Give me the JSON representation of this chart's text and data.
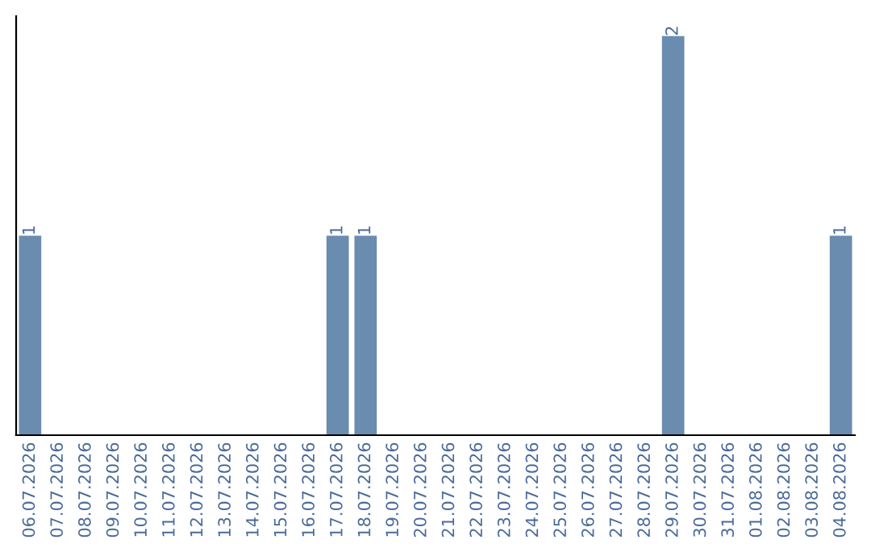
{
  "chart_data": {
    "type": "bar",
    "categories": [
      "06.07.2026",
      "07.07.2026",
      "08.07.2026",
      "09.07.2026",
      "10.07.2026",
      "11.07.2026",
      "12.07.2026",
      "13.07.2026",
      "14.07.2026",
      "15.07.2026",
      "16.07.2026",
      "17.07.2026",
      "18.07.2026",
      "19.07.2026",
      "20.07.2026",
      "21.07.2026",
      "22.07.2026",
      "23.07.2026",
      "24.07.2026",
      "25.07.2026",
      "26.07.2026",
      "27.07.2026",
      "28.07.2026",
      "29.07.2026",
      "30.07.2026",
      "31.07.2026",
      "01.08.2026",
      "02.08.2026",
      "03.08.2026",
      "04.08.2026"
    ],
    "values": [
      1,
      0,
      0,
      0,
      0,
      0,
      0,
      0,
      0,
      0,
      0,
      1,
      1,
      0,
      0,
      0,
      0,
      0,
      0,
      0,
      0,
      0,
      0,
      2,
      0,
      0,
      0,
      0,
      0,
      1
    ],
    "color": "#6a8caf",
    "value_labels": [
      "1",
      null,
      null,
      null,
      null,
      null,
      null,
      null,
      null,
      null,
      null,
      "1",
      "1",
      null,
      null,
      null,
      null,
      null,
      null,
      null,
      null,
      null,
      null,
      "2",
      null,
      null,
      null,
      null,
      null,
      "1"
    ],
    "tick_labels": "x",
    "grid": false,
    "legend": false
  }
}
